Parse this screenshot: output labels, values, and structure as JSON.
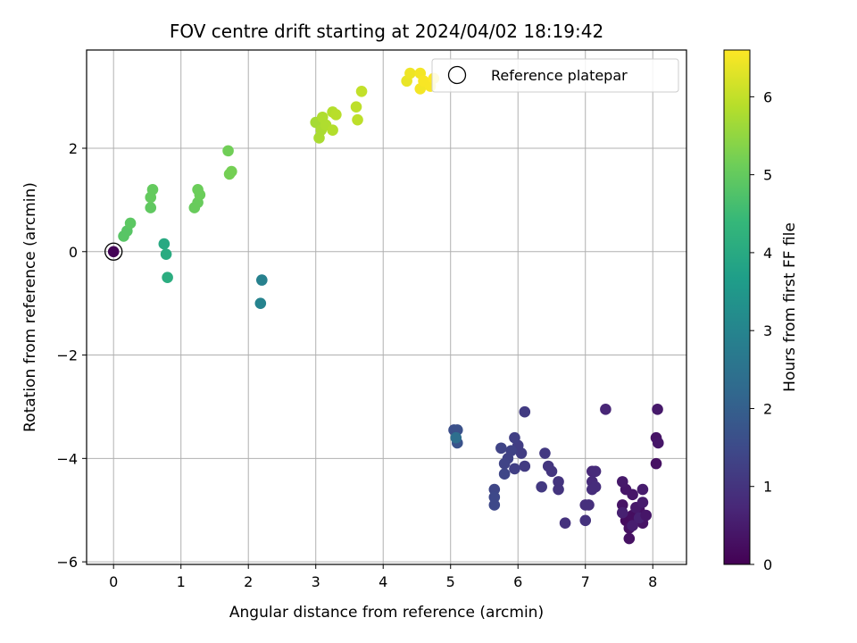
{
  "chart_data": {
    "type": "scatter",
    "title": "FOV centre drift starting at 2024/04/02 18:19:42",
    "xlabel": "Angular distance from reference (arcmin)",
    "ylabel": "Rotation from reference (arcmin)",
    "xlim": [
      -0.4,
      8.5
    ],
    "ylim": [
      -6.05,
      3.9
    ],
    "xticks": [
      0,
      1,
      2,
      3,
      4,
      5,
      6,
      7,
      8
    ],
    "yticks": [
      -6,
      -4,
      -2,
      0,
      2
    ],
    "grid": true,
    "colorbar": {
      "label": "Hours from first FF file",
      "range": [
        0,
        6.6
      ],
      "ticks": [
        0,
        1,
        2,
        3,
        4,
        5,
        6
      ],
      "colormap": "viridis"
    },
    "legend": {
      "placement": "top-right",
      "entries": [
        "Reference platepar"
      ]
    },
    "reference_point": {
      "x": 0,
      "y": 0
    },
    "points": [
      {
        "x": 0.0,
        "y": 0.0,
        "c": 0.05
      },
      {
        "x": 7.6,
        "y": -5.2,
        "c": 0.2
      },
      {
        "x": 7.7,
        "y": -5.1,
        "c": 0.25
      },
      {
        "x": 7.8,
        "y": -5.0,
        "c": 0.3
      },
      {
        "x": 7.65,
        "y": -5.35,
        "c": 0.3
      },
      {
        "x": 7.55,
        "y": -4.9,
        "c": 0.35
      },
      {
        "x": 7.85,
        "y": -5.25,
        "c": 0.35
      },
      {
        "x": 7.7,
        "y": -4.7,
        "c": 0.4
      },
      {
        "x": 7.6,
        "y": -4.6,
        "c": 0.4
      },
      {
        "x": 7.75,
        "y": -4.95,
        "c": 0.45
      },
      {
        "x": 7.55,
        "y": -4.45,
        "c": 0.45
      },
      {
        "x": 7.85,
        "y": -4.6,
        "c": 0.5
      },
      {
        "x": 7.85,
        "y": -4.85,
        "c": 0.5
      },
      {
        "x": 7.7,
        "y": -5.3,
        "c": 0.55
      },
      {
        "x": 7.65,
        "y": -5.55,
        "c": 0.3
      },
      {
        "x": 7.55,
        "y": -5.05,
        "c": 0.6
      },
      {
        "x": 7.8,
        "y": -5.15,
        "c": 0.6
      },
      {
        "x": 7.9,
        "y": -5.1,
        "c": 0.4
      },
      {
        "x": 8.05,
        "y": -4.1,
        "c": 0.3
      },
      {
        "x": 8.05,
        "y": -3.6,
        "c": 0.35
      },
      {
        "x": 8.08,
        "y": -3.7,
        "c": 0.4
      },
      {
        "x": 8.07,
        "y": -3.05,
        "c": 0.45
      },
      {
        "x": 7.3,
        "y": -3.05,
        "c": 0.7
      },
      {
        "x": 7.1,
        "y": -4.25,
        "c": 0.75
      },
      {
        "x": 7.15,
        "y": -4.25,
        "c": 0.8
      },
      {
        "x": 7.1,
        "y": -4.45,
        "c": 0.8
      },
      {
        "x": 7.15,
        "y": -4.55,
        "c": 0.85
      },
      {
        "x": 7.1,
        "y": -4.6,
        "c": 0.85
      },
      {
        "x": 7.05,
        "y": -4.9,
        "c": 0.9
      },
      {
        "x": 7.0,
        "y": -4.9,
        "c": 0.9
      },
      {
        "x": 7.0,
        "y": -5.2,
        "c": 0.95
      },
      {
        "x": 6.7,
        "y": -5.25,
        "c": 0.95
      },
      {
        "x": 6.6,
        "y": -4.45,
        "c": 1.0
      },
      {
        "x": 6.6,
        "y": -4.6,
        "c": 1.0
      },
      {
        "x": 6.5,
        "y": -4.25,
        "c": 1.05
      },
      {
        "x": 6.45,
        "y": -4.15,
        "c": 1.05
      },
      {
        "x": 6.4,
        "y": -3.9,
        "c": 1.1
      },
      {
        "x": 6.35,
        "y": -4.55,
        "c": 1.1
      },
      {
        "x": 6.1,
        "y": -3.1,
        "c": 1.15
      },
      {
        "x": 6.1,
        "y": -4.15,
        "c": 1.15
      },
      {
        "x": 6.05,
        "y": -3.9,
        "c": 1.2
      },
      {
        "x": 6.0,
        "y": -3.75,
        "c": 1.2
      },
      {
        "x": 5.95,
        "y": -3.6,
        "c": 1.25
      },
      {
        "x": 5.95,
        "y": -4.2,
        "c": 1.25
      },
      {
        "x": 5.9,
        "y": -3.85,
        "c": 1.3
      },
      {
        "x": 5.85,
        "y": -4.0,
        "c": 1.3
      },
      {
        "x": 5.8,
        "y": -4.1,
        "c": 1.35
      },
      {
        "x": 5.75,
        "y": -3.8,
        "c": 1.35
      },
      {
        "x": 5.8,
        "y": -4.3,
        "c": 1.4
      },
      {
        "x": 5.65,
        "y": -4.6,
        "c": 1.4
      },
      {
        "x": 5.65,
        "y": -4.75,
        "c": 1.45
      },
      {
        "x": 5.65,
        "y": -4.9,
        "c": 1.45
      },
      {
        "x": 5.05,
        "y": -3.45,
        "c": 1.6
      },
      {
        "x": 5.1,
        "y": -3.45,
        "c": 1.65
      },
      {
        "x": 5.1,
        "y": -3.7,
        "c": 1.7
      },
      {
        "x": 5.08,
        "y": -3.6,
        "c": 2.4
      },
      {
        "x": 2.2,
        "y": -0.55,
        "c": 2.9
      },
      {
        "x": 2.18,
        "y": -1.0,
        "c": 2.95
      },
      {
        "x": 0.75,
        "y": 0.15,
        "c": 4.0
      },
      {
        "x": 0.78,
        "y": -0.05,
        "c": 4.05
      },
      {
        "x": 0.8,
        "y": -0.5,
        "c": 4.1
      },
      {
        "x": 0.15,
        "y": 0.3,
        "c": 4.85
      },
      {
        "x": 0.2,
        "y": 0.4,
        "c": 4.85
      },
      {
        "x": 0.25,
        "y": 0.55,
        "c": 4.9
      },
      {
        "x": 0.55,
        "y": 0.85,
        "c": 4.95
      },
      {
        "x": 0.55,
        "y": 1.05,
        "c": 5.0
      },
      {
        "x": 0.58,
        "y": 1.2,
        "c": 5.0
      },
      {
        "x": 1.2,
        "y": 0.85,
        "c": 5.05
      },
      {
        "x": 1.25,
        "y": 0.95,
        "c": 5.05
      },
      {
        "x": 1.28,
        "y": 1.1,
        "c": 5.1
      },
      {
        "x": 1.25,
        "y": 1.2,
        "c": 5.1
      },
      {
        "x": 1.7,
        "y": 1.95,
        "c": 5.15
      },
      {
        "x": 1.72,
        "y": 1.5,
        "c": 5.2
      },
      {
        "x": 1.75,
        "y": 1.55,
        "c": 5.2
      },
      {
        "x": 3.0,
        "y": 2.5,
        "c": 5.7
      },
      {
        "x": 3.05,
        "y": 2.2,
        "c": 5.75
      },
      {
        "x": 3.08,
        "y": 2.35,
        "c": 5.75
      },
      {
        "x": 3.1,
        "y": 2.6,
        "c": 5.8
      },
      {
        "x": 3.15,
        "y": 2.45,
        "c": 5.8
      },
      {
        "x": 3.25,
        "y": 2.35,
        "c": 5.85
      },
      {
        "x": 3.25,
        "y": 2.7,
        "c": 5.85
      },
      {
        "x": 3.3,
        "y": 2.65,
        "c": 5.9
      },
      {
        "x": 3.6,
        "y": 2.8,
        "c": 5.95
      },
      {
        "x": 3.62,
        "y": 2.55,
        "c": 5.95
      },
      {
        "x": 3.68,
        "y": 3.1,
        "c": 6.0
      },
      {
        "x": 4.35,
        "y": 3.3,
        "c": 6.4
      },
      {
        "x": 4.4,
        "y": 3.45,
        "c": 6.45
      },
      {
        "x": 4.55,
        "y": 3.15,
        "c": 6.5
      },
      {
        "x": 4.55,
        "y": 3.45,
        "c": 6.5
      },
      {
        "x": 4.6,
        "y": 3.3,
        "c": 6.55
      },
      {
        "x": 4.7,
        "y": 3.2,
        "c": 6.55
      },
      {
        "x": 4.75,
        "y": 3.35,
        "c": 6.6
      }
    ]
  },
  "colors": {
    "grid": "#b0b0b0",
    "axis": "#000000",
    "viridis": [
      "#440154",
      "#482878",
      "#3e4989",
      "#31688e",
      "#26828e",
      "#1f9e89",
      "#35b779",
      "#6ece58",
      "#b5de2b",
      "#fde725"
    ]
  }
}
